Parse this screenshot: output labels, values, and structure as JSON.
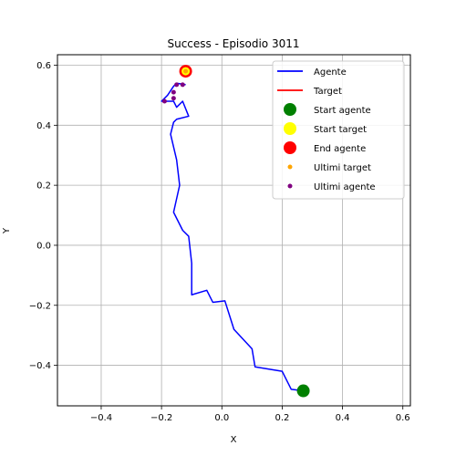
{
  "chart_data": {
    "type": "line",
    "title": "Success - Episodio 3011",
    "xlabel": "X",
    "ylabel": "Y",
    "xlim": [
      -0.545,
      0.625
    ],
    "ylim": [
      -0.535,
      0.635
    ],
    "xticks": [
      -0.4,
      -0.2,
      0.0,
      0.2,
      0.4,
      0.6
    ],
    "yticks": [
      -0.4,
      -0.2,
      0.0,
      0.2,
      0.4,
      0.6
    ],
    "xtick_labels": [
      "−0.4",
      "−0.2",
      "0.0",
      "0.2",
      "0.4",
      "0.6"
    ],
    "ytick_labels": [
      "−0.4",
      "−0.2",
      "0.0",
      "0.2",
      "0.4",
      "0.6"
    ],
    "grid": true,
    "legend_position": "top-right",
    "series": [
      {
        "name": "Agente",
        "kind": "line",
        "color": "#0000ff",
        "x": [
          0.27,
          0.23,
          0.2,
          0.11,
          0.1,
          0.04,
          0.01,
          -0.03,
          -0.05,
          -0.1,
          -0.1,
          -0.11,
          -0.13,
          -0.16,
          -0.14,
          -0.15,
          -0.17,
          -0.16,
          -0.15,
          -0.11,
          -0.13,
          -0.15,
          -0.16,
          -0.2,
          -0.18,
          -0.16,
          -0.15,
          -0.12
        ],
        "y": [
          -0.485,
          -0.48,
          -0.42,
          -0.405,
          -0.345,
          -0.28,
          -0.185,
          -0.19,
          -0.15,
          -0.165,
          -0.06,
          0.03,
          0.05,
          0.11,
          0.2,
          0.285,
          0.37,
          0.41,
          0.42,
          0.43,
          0.48,
          0.46,
          0.48,
          0.48,
          0.5,
          0.53,
          0.54,
          0.535
        ]
      },
      {
        "name": "Target",
        "kind": "line",
        "color": "#ff0000",
        "x": [
          -0.12,
          -0.12
        ],
        "y": [
          0.58,
          0.58
        ]
      },
      {
        "name": "Start agente",
        "kind": "marker",
        "color": "#008000",
        "x": [
          0.27
        ],
        "y": [
          -0.485
        ]
      },
      {
        "name": "Start target",
        "kind": "marker",
        "color": "#ffff00",
        "x": [
          -0.12
        ],
        "y": [
          0.58
        ]
      },
      {
        "name": "End agente",
        "kind": "marker",
        "color": "#ff0000",
        "x": [
          -0.12
        ],
        "y": [
          0.58
        ]
      },
      {
        "name": "Ultimi target",
        "kind": "small-marker",
        "color": "#ffa500",
        "x": [
          -0.12
        ],
        "y": [
          0.58
        ]
      },
      {
        "name": "Ultimi agente",
        "kind": "small-marker",
        "color": "#800080",
        "x": [
          -0.19,
          -0.16,
          -0.16,
          -0.15,
          -0.13
        ],
        "y": [
          0.48,
          0.49,
          0.51,
          0.535,
          0.535
        ]
      }
    ]
  }
}
